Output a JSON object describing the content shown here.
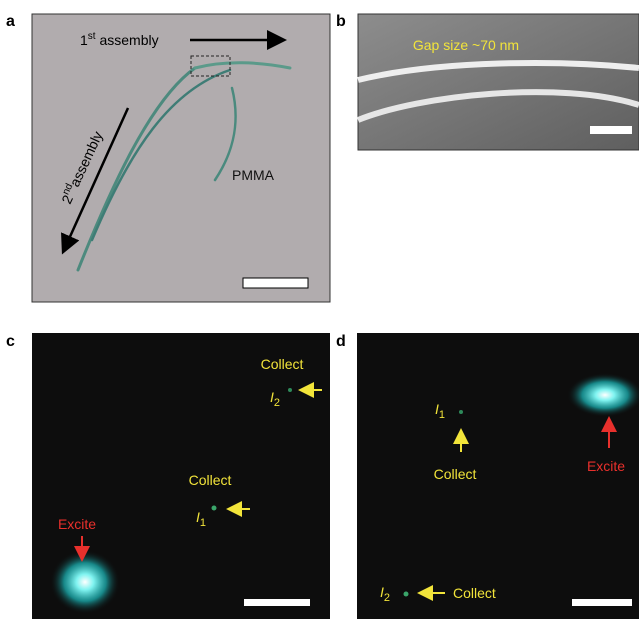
{
  "panel_a": {
    "label": "a",
    "first_assembly": {
      "num": "1",
      "sup": "st",
      "text": " assembly"
    },
    "second_assembly": {
      "num": "2",
      "sup": "nd",
      "text": "assembly"
    },
    "material": "PMMA"
  },
  "panel_b": {
    "label": "b",
    "gap": "Gap size ~70 nm"
  },
  "panel_c": {
    "label": "c",
    "collect_top": "Collect",
    "output_top": {
      "symbol": "I",
      "sub": "2"
    },
    "collect_mid": "Collect",
    "output_mid": {
      "symbol": "I",
      "sub": "1"
    },
    "excite": "Excite"
  },
  "panel_d": {
    "label": "d",
    "output_top": {
      "symbol": "I",
      "sub": "1"
    },
    "collect_top": "Collect",
    "excite": "Excite",
    "output_bottom": {
      "symbol": "I",
      "sub": "2"
    },
    "collect_bottom": "Collect"
  }
}
